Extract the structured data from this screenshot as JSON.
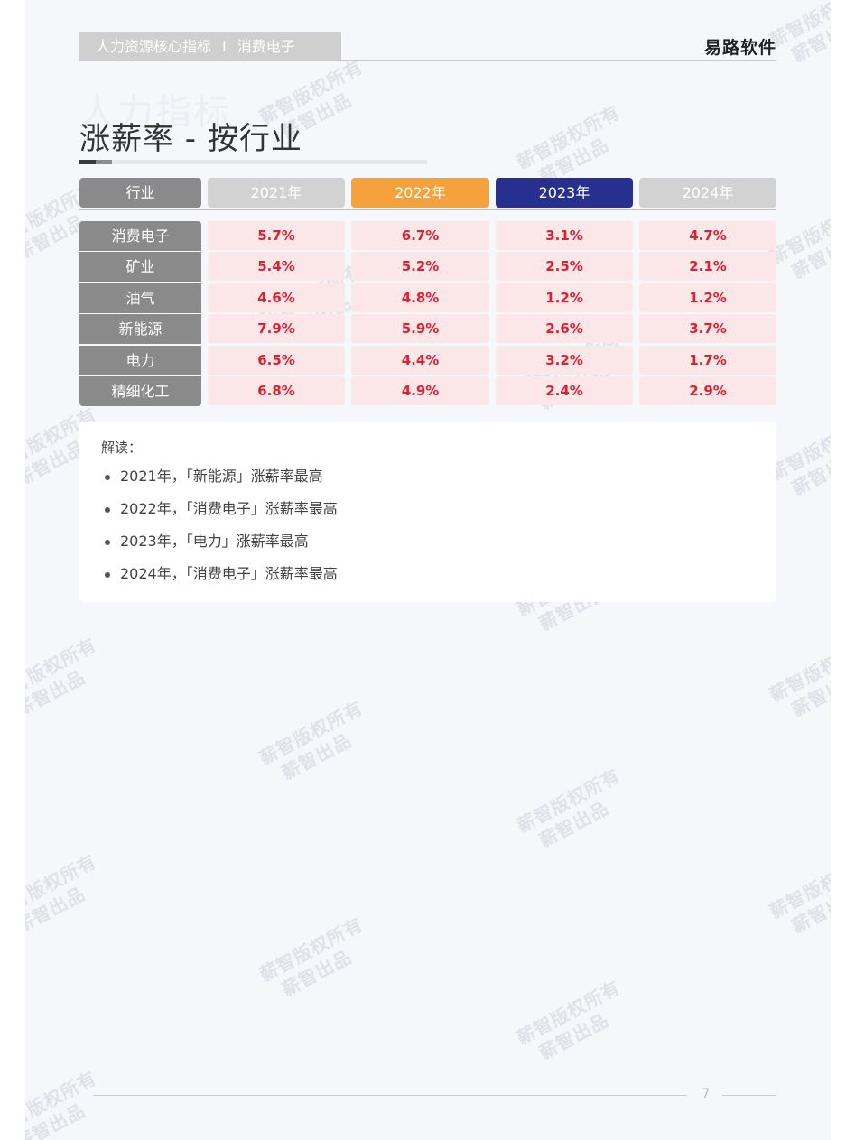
{
  "header": {
    "section": "人力资源核心指标",
    "separator": "I",
    "subsection": "消费电子",
    "brand": "易路软件"
  },
  "page": {
    "ghost_title": "人力指标",
    "title": "涨薪率 - 按行业"
  },
  "table": {
    "columns": [
      {
        "label": "行业",
        "color": "#8a8a8a"
      },
      {
        "label": "2021年",
        "color": "#d2d2d2"
      },
      {
        "label": "2022年",
        "color": "#f5a13c"
      },
      {
        "label": "2023年",
        "color": "#27308f"
      },
      {
        "label": "2024年",
        "color": "#d2d2d2"
      }
    ],
    "rows": [
      {
        "industry": "消费电子",
        "values": [
          "5.7%",
          "6.7%",
          "3.1%",
          "4.7%"
        ]
      },
      {
        "industry": "矿业",
        "values": [
          "5.4%",
          "5.2%",
          "2.5%",
          "2.1%"
        ]
      },
      {
        "industry": "油气",
        "values": [
          "4.6%",
          "4.8%",
          "1.2%",
          "1.2%"
        ]
      },
      {
        "industry": "新能源",
        "values": [
          "7.9%",
          "5.9%",
          "2.6%",
          "3.7%"
        ]
      },
      {
        "industry": "电力",
        "values": [
          "6.5%",
          "4.4%",
          "3.2%",
          "1.7%"
        ]
      },
      {
        "industry": "精细化工",
        "values": [
          "6.8%",
          "4.9%",
          "2.4%",
          "2.9%"
        ]
      }
    ]
  },
  "insights": {
    "heading": "解读：",
    "items": [
      "2021年，「新能源」涨薪率最高",
      "2022年，「消费电子」涨薪率最高",
      "2023年，「电力」涨薪率最高",
      "2024年，「消费电子」涨薪率最高"
    ]
  },
  "watermark": {
    "line1": "薪智版权所有",
    "line2": "薪智出品"
  },
  "footer": {
    "page_number": "7"
  }
}
